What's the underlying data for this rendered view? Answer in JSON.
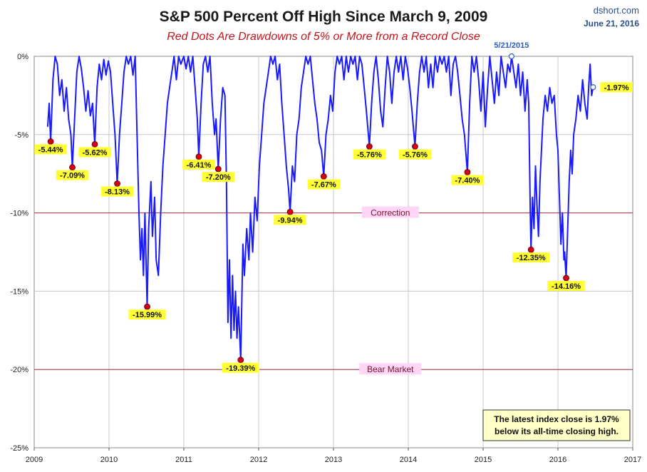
{
  "title": "S&P 500 Percent Off High Since March 9, 2009",
  "subtitle": "Red Dots Are Drawdowns of 5% or More from a Record Close",
  "credit": {
    "site": "dshort.com",
    "date": "June 21, 2016"
  },
  "note": {
    "line1": "The latest index close is 1.97%",
    "line2": "below its all-time closing high."
  },
  "colors": {
    "line": "#1a1aff",
    "drawdown_dot": "#d40016",
    "reference_line": "#b03040",
    "label_highlight": "#ffff33",
    "reference_label_bg": "#ffd6f5",
    "note_bg": "#ffffc8",
    "grid": "#c8c8c8"
  },
  "chart_data": {
    "type": "line",
    "title": "S&P 500 Percent Off High Since March 9, 2009",
    "ylim": [
      -25,
      0
    ],
    "xlim": [
      2009,
      2017
    ],
    "y_ticks": [
      "0%",
      "-5%",
      "-10%",
      "-15%",
      "-20%",
      "-25%"
    ],
    "y_tick_values": [
      0,
      -5,
      -10,
      -15,
      -20,
      -25
    ],
    "x_ticks": [
      "2009",
      "2010",
      "2011",
      "2012",
      "2013",
      "2014",
      "2015",
      "2016",
      "2017"
    ],
    "x_tick_values": [
      2009,
      2010,
      2011,
      2012,
      2013,
      2014,
      2015,
      2016,
      2017
    ],
    "grid": true,
    "reference_lines": [
      {
        "label": "Correction",
        "y": -10
      },
      {
        "label": "Bear Market",
        "y": -20
      }
    ],
    "drawdowns": [
      {
        "x": 2009.22,
        "y": -5.44,
        "label": "-5.44%"
      },
      {
        "x": 2009.51,
        "y": -7.09,
        "label": "-7.09%"
      },
      {
        "x": 2009.81,
        "y": -5.62,
        "label": "-5.62%"
      },
      {
        "x": 2010.11,
        "y": -8.13,
        "label": "-8.13%"
      },
      {
        "x": 2010.51,
        "y": -15.99,
        "label": "-15.99%"
      },
      {
        "x": 2011.2,
        "y": -6.41,
        "label": "-6.41%"
      },
      {
        "x": 2011.46,
        "y": -7.2,
        "label": "-7.20%"
      },
      {
        "x": 2011.76,
        "y": -19.39,
        "label": "-19.39%"
      },
      {
        "x": 2012.42,
        "y": -9.94,
        "label": "-9.94%"
      },
      {
        "x": 2012.87,
        "y": -7.67,
        "label": "-7.67%"
      },
      {
        "x": 2013.48,
        "y": -5.76,
        "label": "-5.76%"
      },
      {
        "x": 2014.09,
        "y": -5.76,
        "label": "-5.76%"
      },
      {
        "x": 2014.79,
        "y": -7.4,
        "label": "-7.40%"
      },
      {
        "x": 2015.64,
        "y": -12.35,
        "label": "-12.35%"
      },
      {
        "x": 2016.11,
        "y": -14.16,
        "label": "-14.16%"
      }
    ],
    "peak_marker": {
      "x": 2015.38,
      "y": 0,
      "label": "5/21/2015"
    },
    "latest": {
      "x": 2016.47,
      "y": -1.97,
      "label": "-1.97%"
    },
    "series": [
      {
        "points": [
          [
            2009.18,
            -4.5
          ],
          [
            2009.2,
            -3.0
          ],
          [
            2009.22,
            -5.44
          ],
          [
            2009.25,
            -1.5
          ],
          [
            2009.28,
            0
          ],
          [
            2009.31,
            -0.5
          ],
          [
            2009.34,
            -2.5
          ],
          [
            2009.37,
            -1.5
          ],
          [
            2009.4,
            -3.5
          ],
          [
            2009.43,
            -2.0
          ],
          [
            2009.46,
            -4.0
          ],
          [
            2009.49,
            -5.0
          ],
          [
            2009.51,
            -7.09
          ],
          [
            2009.54,
            -4.0
          ],
          [
            2009.57,
            -1.0
          ],
          [
            2009.6,
            0
          ],
          [
            2009.63,
            -0.8
          ],
          [
            2009.66,
            -2.0
          ],
          [
            2009.69,
            -3.5
          ],
          [
            2009.72,
            -2.2
          ],
          [
            2009.75,
            -3.8
          ],
          [
            2009.78,
            -3.0
          ],
          [
            2009.81,
            -5.62
          ],
          [
            2009.84,
            -2.0
          ],
          [
            2009.87,
            -0.5
          ],
          [
            2009.9,
            -1.5
          ],
          [
            2009.93,
            -0.2
          ],
          [
            2009.96,
            -1.2
          ],
          [
            2009.99,
            -0.3
          ],
          [
            2010.02,
            -1.0
          ],
          [
            2010.05,
            -3.0
          ],
          [
            2010.08,
            -5.0
          ],
          [
            2010.11,
            -8.13
          ],
          [
            2010.14,
            -5.0
          ],
          [
            2010.17,
            -3.0
          ],
          [
            2010.2,
            -1.0
          ],
          [
            2010.23,
            0
          ],
          [
            2010.26,
            -0.5
          ],
          [
            2010.29,
            0
          ],
          [
            2010.32,
            -1.2
          ],
          [
            2010.35,
            0
          ],
          [
            2010.37,
            -4.0
          ],
          [
            2010.4,
            -10.0
          ],
          [
            2010.42,
            -13.0
          ],
          [
            2010.44,
            -11.0
          ],
          [
            2010.46,
            -14.0
          ],
          [
            2010.48,
            -10.0
          ],
          [
            2010.51,
            -15.99
          ],
          [
            2010.53,
            -11.0
          ],
          [
            2010.56,
            -8.0
          ],
          [
            2010.58,
            -11.5
          ],
          [
            2010.61,
            -9.0
          ],
          [
            2010.63,
            -13.0
          ],
          [
            2010.66,
            -14.0
          ],
          [
            2010.69,
            -10.0
          ],
          [
            2010.72,
            -7.0
          ],
          [
            2010.75,
            -5.0
          ],
          [
            2010.78,
            -3.0
          ],
          [
            2010.81,
            -2.0
          ],
          [
            2010.84,
            -1.0
          ],
          [
            2010.87,
            0
          ],
          [
            2010.9,
            -1.5
          ],
          [
            2010.93,
            0
          ],
          [
            2010.96,
            -0.5
          ],
          [
            2011.0,
            0
          ],
          [
            2011.03,
            -0.8
          ],
          [
            2011.06,
            0
          ],
          [
            2011.09,
            -1.0
          ],
          [
            2011.12,
            0
          ],
          [
            2011.15,
            -2.0
          ],
          [
            2011.18,
            -4.0
          ],
          [
            2011.2,
            -6.41
          ],
          [
            2011.23,
            -3.0
          ],
          [
            2011.26,
            -0.5
          ],
          [
            2011.29,
            0
          ],
          [
            2011.32,
            -1.0
          ],
          [
            2011.35,
            0
          ],
          [
            2011.38,
            -3.0
          ],
          [
            2011.41,
            -5.0
          ],
          [
            2011.43,
            -4.0
          ],
          [
            2011.46,
            -7.2
          ],
          [
            2011.49,
            -4.0
          ],
          [
            2011.52,
            -2.0
          ],
          [
            2011.55,
            -2.5
          ],
          [
            2011.57,
            -8.0
          ],
          [
            2011.59,
            -17.0
          ],
          [
            2011.61,
            -13.0
          ],
          [
            2011.63,
            -18.0
          ],
          [
            2011.65,
            -14.0
          ],
          [
            2011.67,
            -17.5
          ],
          [
            2011.69,
            -15.0
          ],
          [
            2011.71,
            -18.0
          ],
          [
            2011.73,
            -16.0
          ],
          [
            2011.76,
            -19.39
          ],
          [
            2011.79,
            -12.0
          ],
          [
            2011.81,
            -14.0
          ],
          [
            2011.84,
            -11.0
          ],
          [
            2011.87,
            -13.0
          ],
          [
            2011.89,
            -10.0
          ],
          [
            2011.92,
            -12.5
          ],
          [
            2011.95,
            -9.0
          ],
          [
            2011.98,
            -10.5
          ],
          [
            2012.01,
            -7.0
          ],
          [
            2012.04,
            -5.0
          ],
          [
            2012.07,
            -3.0
          ],
          [
            2012.1,
            -2.0
          ],
          [
            2012.13,
            -1.0
          ],
          [
            2012.16,
            0
          ],
          [
            2012.19,
            -0.5
          ],
          [
            2012.22,
            0
          ],
          [
            2012.25,
            -1.5
          ],
          [
            2012.28,
            -0.5
          ],
          [
            2012.31,
            -3.0
          ],
          [
            2012.34,
            -5.0
          ],
          [
            2012.37,
            -7.0
          ],
          [
            2012.4,
            -8.5
          ],
          [
            2012.42,
            -9.94
          ],
          [
            2012.45,
            -7.0
          ],
          [
            2012.48,
            -8.0
          ],
          [
            2012.51,
            -5.0
          ],
          [
            2012.54,
            -4.0
          ],
          [
            2012.57,
            -2.0
          ],
          [
            2012.6,
            -1.0
          ],
          [
            2012.63,
            0
          ],
          [
            2012.66,
            -0.5
          ],
          [
            2012.69,
            0
          ],
          [
            2012.72,
            -1.5
          ],
          [
            2012.75,
            -3.0
          ],
          [
            2012.78,
            -4.0
          ],
          [
            2012.81,
            -5.5
          ],
          [
            2012.84,
            -6.0
          ],
          [
            2012.87,
            -7.67
          ],
          [
            2012.9,
            -5.0
          ],
          [
            2012.93,
            -4.0
          ],
          [
            2012.96,
            -2.5
          ],
          [
            2012.99,
            -3.5
          ],
          [
            2013.02,
            -1.0
          ],
          [
            2013.05,
            0
          ],
          [
            2013.08,
            -0.5
          ],
          [
            2013.11,
            0
          ],
          [
            2013.14,
            -1.5
          ],
          [
            2013.17,
            0
          ],
          [
            2013.2,
            -1.0
          ],
          [
            2013.23,
            0
          ],
          [
            2013.26,
            -0.5
          ],
          [
            2013.29,
            0
          ],
          [
            2013.32,
            -1.5
          ],
          [
            2013.35,
            0
          ],
          [
            2013.38,
            -0.5
          ],
          [
            2013.41,
            -2.0
          ],
          [
            2013.44,
            -3.5
          ],
          [
            2013.48,
            -5.76
          ],
          [
            2013.51,
            -3.0
          ],
          [
            2013.54,
            -1.0
          ],
          [
            2013.57,
            0
          ],
          [
            2013.6,
            -1.5
          ],
          [
            2013.63,
            -3.5
          ],
          [
            2013.66,
            -4.5
          ],
          [
            2013.69,
            -2.0
          ],
          [
            2013.72,
            0
          ],
          [
            2013.75,
            -1.0
          ],
          [
            2013.78,
            -3.0
          ],
          [
            2013.81,
            -1.0
          ],
          [
            2013.84,
            0
          ],
          [
            2013.87,
            -1.0
          ],
          [
            2013.9,
            0
          ],
          [
            2013.93,
            -1.5
          ],
          [
            2013.96,
            0
          ],
          [
            2013.99,
            -0.8
          ],
          [
            2014.02,
            -2.0
          ],
          [
            2014.05,
            -3.5
          ],
          [
            2014.09,
            -5.76
          ],
          [
            2014.12,
            -3.0
          ],
          [
            2014.15,
            -1.0
          ],
          [
            2014.18,
            0
          ],
          [
            2014.21,
            -1.0
          ],
          [
            2014.24,
            0
          ],
          [
            2014.27,
            -2.0
          ],
          [
            2014.3,
            -0.5
          ],
          [
            2014.33,
            -2.0
          ],
          [
            2014.36,
            0
          ],
          [
            2014.39,
            -1.0
          ],
          [
            2014.42,
            0
          ],
          [
            2014.45,
            -0.5
          ],
          [
            2014.48,
            0
          ],
          [
            2014.51,
            -1.0
          ],
          [
            2014.54,
            0
          ],
          [
            2014.57,
            -2.5
          ],
          [
            2014.6,
            -0.5
          ],
          [
            2014.63,
            0
          ],
          [
            2014.66,
            -1.0
          ],
          [
            2014.69,
            -2.5
          ],
          [
            2014.72,
            -4.0
          ],
          [
            2014.75,
            -5.0
          ],
          [
            2014.79,
            -7.4
          ],
          [
            2014.82,
            -3.0
          ],
          [
            2014.85,
            0
          ],
          [
            2014.88,
            -1.0
          ],
          [
            2014.91,
            0
          ],
          [
            2014.94,
            -1.5
          ],
          [
            2014.97,
            -3.5
          ],
          [
            2015.0,
            -1.0
          ],
          [
            2015.03,
            -4.5
          ],
          [
            2015.06,
            -2.0
          ],
          [
            2015.09,
            0
          ],
          [
            2015.12,
            -1.5
          ],
          [
            2015.15,
            -3.0
          ],
          [
            2015.18,
            -1.0
          ],
          [
            2015.21,
            -2.5
          ],
          [
            2015.24,
            0
          ],
          [
            2015.27,
            -1.0
          ],
          [
            2015.3,
            -2.0
          ],
          [
            2015.33,
            -0.5
          ],
          [
            2015.36,
            -1.0
          ],
          [
            2015.38,
            0
          ],
          [
            2015.41,
            -1.0
          ],
          [
            2015.44,
            -2.0
          ],
          [
            2015.47,
            -0.5
          ],
          [
            2015.5,
            -2.5
          ],
          [
            2015.53,
            -1.0
          ],
          [
            2015.56,
            -3.5
          ],
          [
            2015.59,
            -1.5
          ],
          [
            2015.61,
            -3.0
          ],
          [
            2015.63,
            -10.0
          ],
          [
            2015.64,
            -12.35
          ],
          [
            2015.66,
            -9.0
          ],
          [
            2015.68,
            -11.0
          ],
          [
            2015.7,
            -7.0
          ],
          [
            2015.72,
            -9.5
          ],
          [
            2015.74,
            -11.5
          ],
          [
            2015.76,
            -8.0
          ],
          [
            2015.78,
            -6.0
          ],
          [
            2015.8,
            -4.0
          ],
          [
            2015.83,
            -2.5
          ],
          [
            2015.86,
            -3.5
          ],
          [
            2015.89,
            -2.0
          ],
          [
            2015.92,
            -3.0
          ],
          [
            2015.95,
            -2.5
          ],
          [
            2015.98,
            -5.0
          ],
          [
            2016.0,
            -6.0
          ],
          [
            2016.02,
            -9.0
          ],
          [
            2016.04,
            -12.0
          ],
          [
            2016.06,
            -10.0
          ],
          [
            2016.08,
            -13.0
          ],
          [
            2016.09,
            -12.5
          ],
          [
            2016.11,
            -14.16
          ],
          [
            2016.13,
            -11.0
          ],
          [
            2016.15,
            -8.0
          ],
          [
            2016.17,
            -6.0
          ],
          [
            2016.19,
            -7.5
          ],
          [
            2016.21,
            -5.0
          ],
          [
            2016.24,
            -4.0
          ],
          [
            2016.27,
            -2.5
          ],
          [
            2016.3,
            -3.5
          ],
          [
            2016.33,
            -1.5
          ],
          [
            2016.36,
            -3.0
          ],
          [
            2016.39,
            -4.0
          ],
          [
            2016.41,
            -2.0
          ],
          [
            2016.43,
            -0.5
          ],
          [
            2016.45,
            -2.5
          ],
          [
            2016.47,
            -1.97
          ]
        ]
      }
    ]
  }
}
